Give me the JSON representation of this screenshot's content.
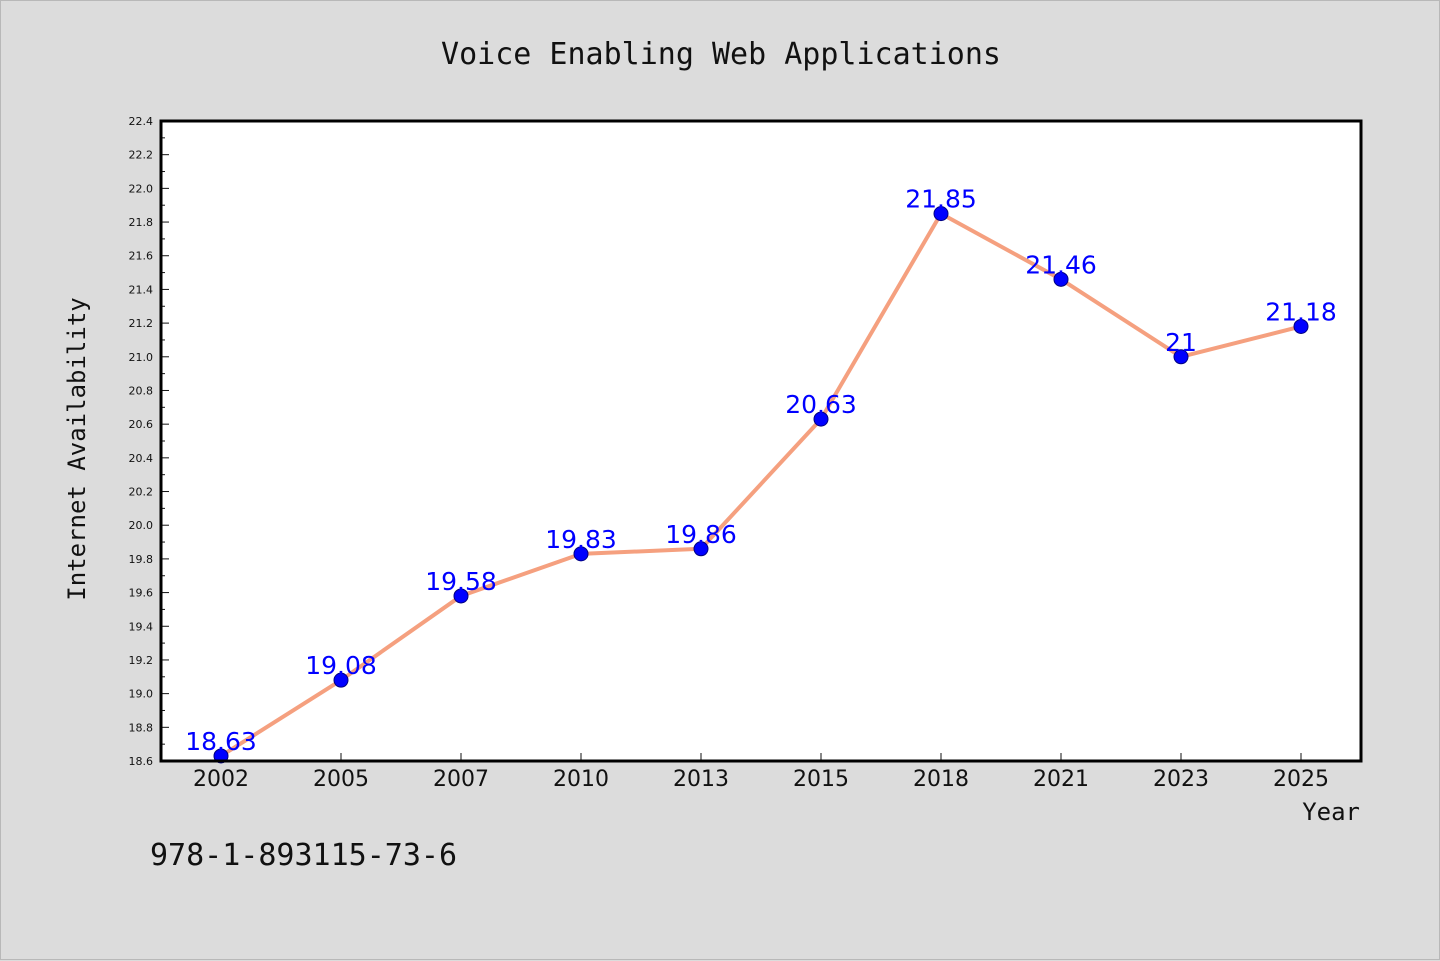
{
  "chart_data": {
    "type": "line",
    "title": "Voice Enabling Web Applications",
    "xlabel": "Year",
    "ylabel": "Internet Availability",
    "categories": [
      "2002",
      "2005",
      "2007",
      "2010",
      "2013",
      "2015",
      "2018",
      "2021",
      "2023",
      "2025"
    ],
    "series": [
      {
        "values": [
          18.63,
          19.08,
          19.58,
          19.83,
          19.86,
          20.63,
          21.85,
          21.46,
          21,
          21.18
        ],
        "data_labels": [
          "18.63",
          "19.08",
          "19.58",
          "19.83",
          "19.86",
          "20.63",
          "21.85",
          "21.46",
          "21",
          "21.18"
        ]
      }
    ],
    "ylim": [
      18.6,
      22.4
    ],
    "yticks": [
      "18.6",
      "18.8",
      "19.0",
      "19.2",
      "19.4",
      "19.6",
      "19.8",
      "20.0",
      "20.2",
      "20.4",
      "20.6",
      "20.8",
      "21.0",
      "21.2",
      "21.4",
      "21.6",
      "21.8",
      "22.0",
      "22.2",
      "22.4"
    ],
    "grid": false,
    "legend": "none",
    "annotation": "978-1-893115-73-6",
    "colors": {
      "line": "#f5a07f",
      "marker": "#0000ff",
      "marker_edge": "#000080",
      "data_label": "#0000ff",
      "plot_background": "#ffffff",
      "page_background": "#dcdcdc",
      "frame": "#000000"
    }
  }
}
